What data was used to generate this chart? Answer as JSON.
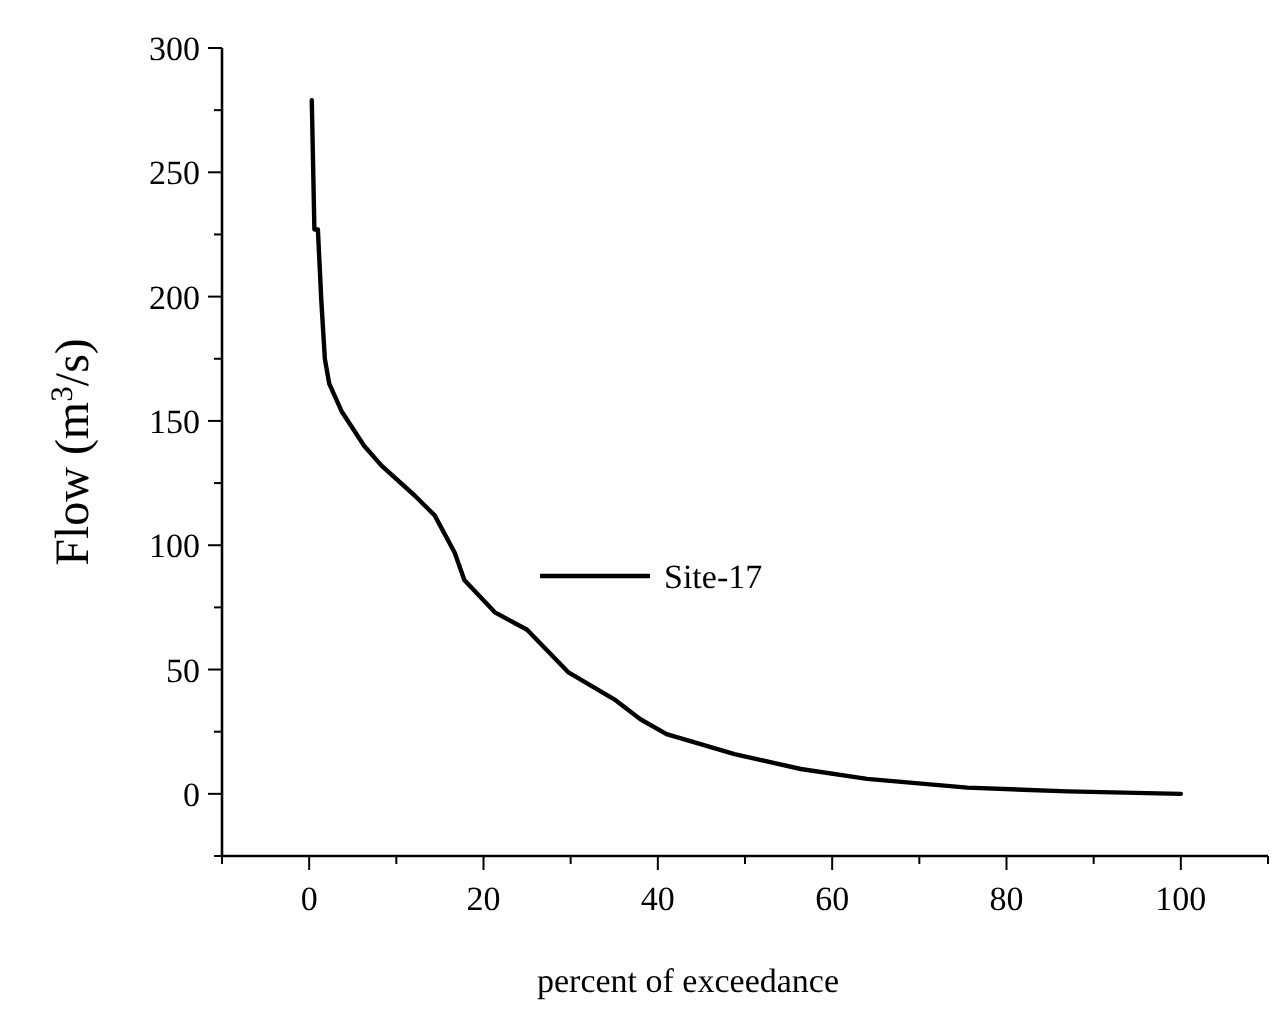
{
  "chart_data": {
    "type": "line",
    "xlabel": "percent of exceedance",
    "ylabel": "Flow (m$^{3}$/s)",
    "xlim": [
      -10,
      110
    ],
    "ylim": [
      -25,
      300
    ],
    "xticks": [
      {
        "value": -10,
        "label": null
      },
      0,
      {
        "value": 10,
        "label": null
      },
      20,
      {
        "value": 30,
        "label": null
      },
      40,
      {
        "value": 50,
        "label": null
      },
      60,
      {
        "value": 70,
        "label": null
      },
      80,
      {
        "value": 90,
        "label": null
      },
      100,
      {
        "value": 110,
        "label": null
      }
    ],
    "yticks": [
      {
        "value": -25,
        "label": null
      },
      0,
      {
        "value": 25,
        "label": null
      },
      50,
      {
        "value": 75,
        "label": null
      },
      100,
      {
        "value": 125,
        "label": null
      },
      150,
      {
        "value": 175,
        "label": null
      },
      200,
      {
        "value": 225,
        "label": null
      },
      250,
      {
        "value": 275,
        "label": null
      },
      300
    ],
    "legend": "center",
    "grid": false,
    "line_style": "solid",
    "series": [
      {
        "name": "Site-17",
        "color": "#000000",
        "x": [
          0.3,
          0.6,
          1,
          1.4,
          1.8,
          2.3,
          3.7,
          6.3,
          8.3,
          12.1,
          14.4,
          16.7,
          17.8,
          21.3,
          25,
          29.7,
          35,
          38,
          41,
          48.8,
          56.4,
          64,
          75.5,
          87,
          100
        ],
        "values": [
          279,
          227,
          227,
          198,
          175,
          165,
          154,
          140,
          132,
          120,
          112,
          97,
          86,
          73,
          66,
          49,
          38,
          30,
          24,
          16,
          10,
          6,
          2.5,
          1,
          0
        ]
      }
    ]
  }
}
